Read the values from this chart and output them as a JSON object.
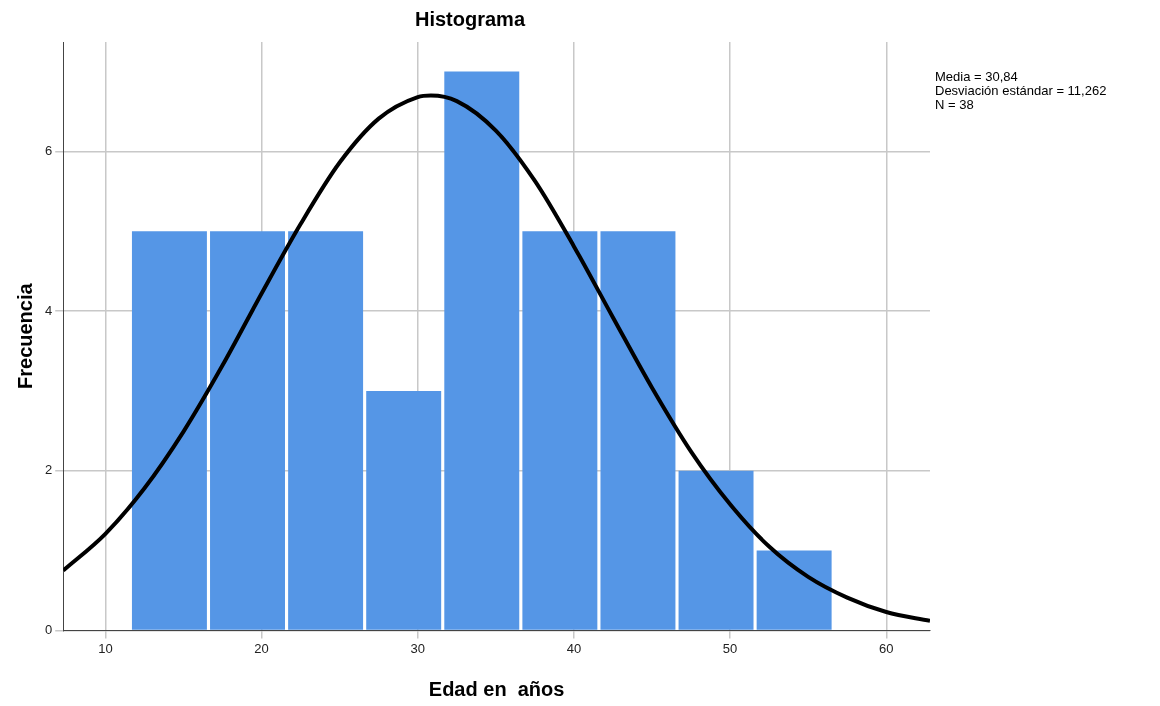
{
  "chart_data": {
    "type": "histogram",
    "title": "Histograma",
    "xlabel": "Edad en  años",
    "ylabel": "Frecuencia",
    "bins": [
      11.6,
      16.6,
      21.6,
      26.6,
      31.6,
      36.6,
      41.6,
      46.6,
      51.6,
      56.6
    ],
    "values": [
      5,
      5,
      5,
      3,
      7,
      5,
      5,
      2,
      1
    ],
    "color": "#5596e6",
    "series": [
      {
        "type": "line",
        "color": "#000000",
        "x": [
          7.3,
          10,
          12.5,
          15,
          17.5,
          20,
          22.5,
          25,
          27.5,
          30,
          30.84,
          32.5,
          35,
          37.5,
          40,
          42.5,
          45,
          47.5,
          50,
          52.5,
          55,
          57.5,
          60,
          62.8
        ],
        "values": [
          0.75,
          1.21,
          1.78,
          2.49,
          3.32,
          4.22,
          5.09,
          5.86,
          6.41,
          6.68,
          6.7,
          6.63,
          6.26,
          5.63,
          4.81,
          3.92,
          3.04,
          2.24,
          1.58,
          1.05,
          0.67,
          0.41,
          0.23,
          0.12
        ]
      }
    ],
    "xlim": [
      7.3,
      62.8
    ],
    "xticks": [
      10,
      20,
      30,
      40,
      50,
      60
    ],
    "ylim": [
      0,
      7.37
    ],
    "yticks": [
      0,
      2,
      4,
      6
    ],
    "grid": true,
    "legend": false,
    "marker": "none",
    "annotations": [
      "Media = 30,84",
      "Desviación estándar = 11,262",
      "N = 38"
    ]
  }
}
